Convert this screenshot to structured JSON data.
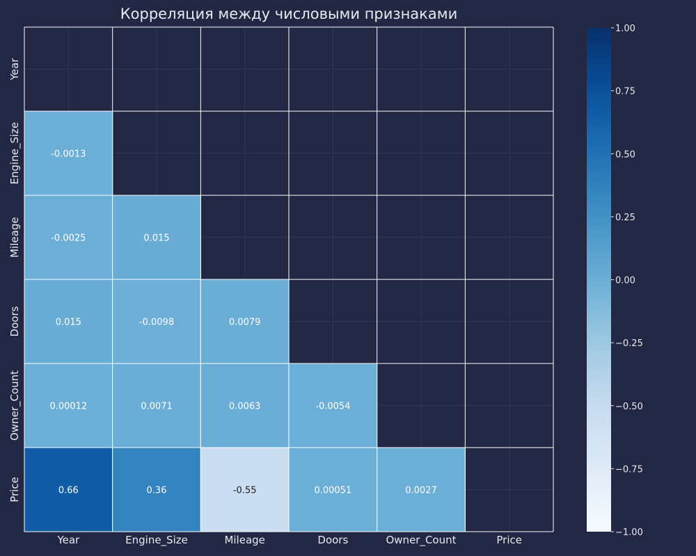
{
  "chart_data": {
    "type": "heatmap",
    "title": "Корреляция между числовыми признаками",
    "variables": [
      "Year",
      "Engine_Size",
      "Mileage",
      "Doors",
      "Owner_Count",
      "Price"
    ],
    "mask": "upper_triangle_and_diagonal",
    "cells": [
      {
        "row": "Engine_Size",
        "col": "Year",
        "value": -0.0013,
        "label": "-0.0013"
      },
      {
        "row": "Mileage",
        "col": "Year",
        "value": -0.0025,
        "label": "-0.0025"
      },
      {
        "row": "Mileage",
        "col": "Engine_Size",
        "value": 0.015,
        "label": "0.015"
      },
      {
        "row": "Doors",
        "col": "Year",
        "value": 0.015,
        "label": "0.015"
      },
      {
        "row": "Doors",
        "col": "Engine_Size",
        "value": -0.0098,
        "label": "-0.0098"
      },
      {
        "row": "Doors",
        "col": "Mileage",
        "value": 0.0079,
        "label": "0.0079"
      },
      {
        "row": "Owner_Count",
        "col": "Year",
        "value": 0.00012,
        "label": "0.00012"
      },
      {
        "row": "Owner_Count",
        "col": "Engine_Size",
        "value": 0.0071,
        "label": "0.0071"
      },
      {
        "row": "Owner_Count",
        "col": "Mileage",
        "value": 0.0063,
        "label": "0.0063"
      },
      {
        "row": "Owner_Count",
        "col": "Doors",
        "value": -0.0054,
        "label": "-0.0054"
      },
      {
        "row": "Price",
        "col": "Year",
        "value": 0.66,
        "label": "0.66"
      },
      {
        "row": "Price",
        "col": "Engine_Size",
        "value": 0.36,
        "label": "0.36"
      },
      {
        "row": "Price",
        "col": "Mileage",
        "value": -0.55,
        "label": "-0.55"
      },
      {
        "row": "Price",
        "col": "Doors",
        "value": 0.00051,
        "label": "0.00051"
      },
      {
        "row": "Price",
        "col": "Owner_Count",
        "value": 0.0027,
        "label": "0.0027"
      }
    ],
    "colorbar": {
      "range": [
        -1,
        1
      ],
      "ticks": [
        1.0,
        0.75,
        0.5,
        0.25,
        0.0,
        -0.25,
        -0.5,
        -0.75,
        -1.0
      ],
      "tick_labels": [
        "1.00",
        "0.75",
        "0.50",
        "0.25",
        "0.00",
        "−0.25",
        "−0.50",
        "−0.75",
        "−1.00"
      ],
      "colormap": "Blues"
    },
    "colors": {
      "background": "#222844",
      "cell_border": "#ffffff",
      "text_light": "#ffffff",
      "text_dark": "#1a1a1a"
    },
    "grid": true
  }
}
